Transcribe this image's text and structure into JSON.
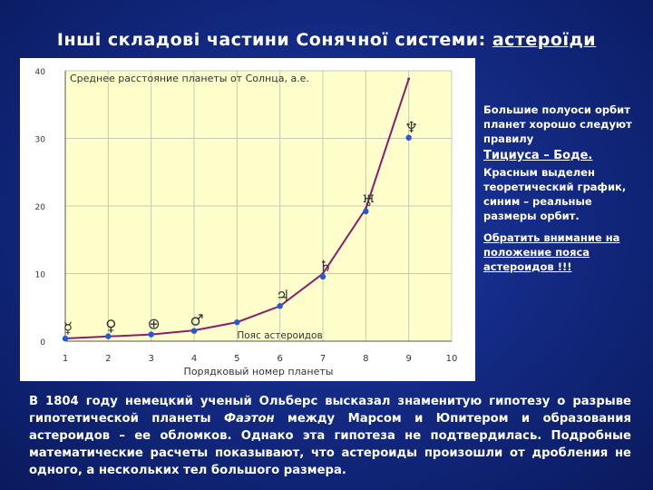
{
  "slide": {
    "title_prefix": "Інші складові частини Сонячної системи: ",
    "title_link": "астероїди"
  },
  "side_panel": {
    "p1": "Большие полуоси орбит планет хорошо следуют правилу",
    "p1_rule": "Тициуса – Боде.",
    "p2": "Красным выделен теоретический график, синим – реальные размеры орбит.",
    "note": "Обратить внимание на положение пояса астероидов !!!"
  },
  "body": {
    "t1": "В 1804 году немецкий ученый Ольберс высказал знаменитую гипотезу о разрыве гипотетической планеты ",
    "phaeton": "Фаэтон",
    "t2": " между Марсом и Юпитером и образования астероидов – ее обломков. Однако эта гипотеза не подтвердилась. Подробные математические расчеты показывают, что астероиды произошли от дробления не одного, а нескольких тел большого размера."
  },
  "chart_data": {
    "type": "line",
    "title": "Среднее расстояние планеты от Солнца, а.е.",
    "xlabel": "Порядковый номер планеты",
    "xlim": [
      1,
      10
    ],
    "ylim": [
      0,
      40
    ],
    "xticks": [
      1,
      2,
      3,
      4,
      5,
      6,
      7,
      8,
      9,
      10
    ],
    "yticks": [
      0,
      10,
      20,
      30,
      40
    ],
    "grid": true,
    "colors": {
      "theory": "#8a1e6e",
      "actual": "#1f5bd8",
      "background": "#ffffcc"
    },
    "series": [
      {
        "name": "theory",
        "x": [
          1,
          2,
          3,
          4,
          5,
          6,
          7,
          8,
          9
        ],
        "y": [
          0.4,
          0.7,
          1.0,
          1.6,
          2.8,
          5.2,
          10.0,
          19.6,
          38.8
        ]
      },
      {
        "name": "actual",
        "x": [
          1,
          2,
          3,
          4,
          5,
          6,
          7,
          8,
          9
        ],
        "y": [
          0.39,
          0.72,
          1.0,
          1.52,
          2.8,
          5.2,
          9.54,
          19.2,
          30.1
        ]
      }
    ],
    "symbols": [
      {
        "x": 1,
        "glyph": "☿",
        "name": "mercury-symbol"
      },
      {
        "x": 2,
        "glyph": "♀",
        "name": "venus-symbol"
      },
      {
        "x": 3,
        "glyph": "⊕",
        "name": "earth-symbol"
      },
      {
        "x": 4,
        "glyph": "♂",
        "name": "mars-symbol"
      },
      {
        "x": 6,
        "glyph": "♃",
        "name": "jupiter-symbol"
      },
      {
        "x": 7,
        "glyph": "♄",
        "name": "saturn-symbol"
      },
      {
        "x": 8,
        "glyph": "♅",
        "name": "uranus-symbol"
      },
      {
        "x": 9,
        "glyph": "♆",
        "name": "neptune-symbol"
      }
    ],
    "annotation": {
      "text": "Пояс астероидов",
      "x": 5
    }
  }
}
